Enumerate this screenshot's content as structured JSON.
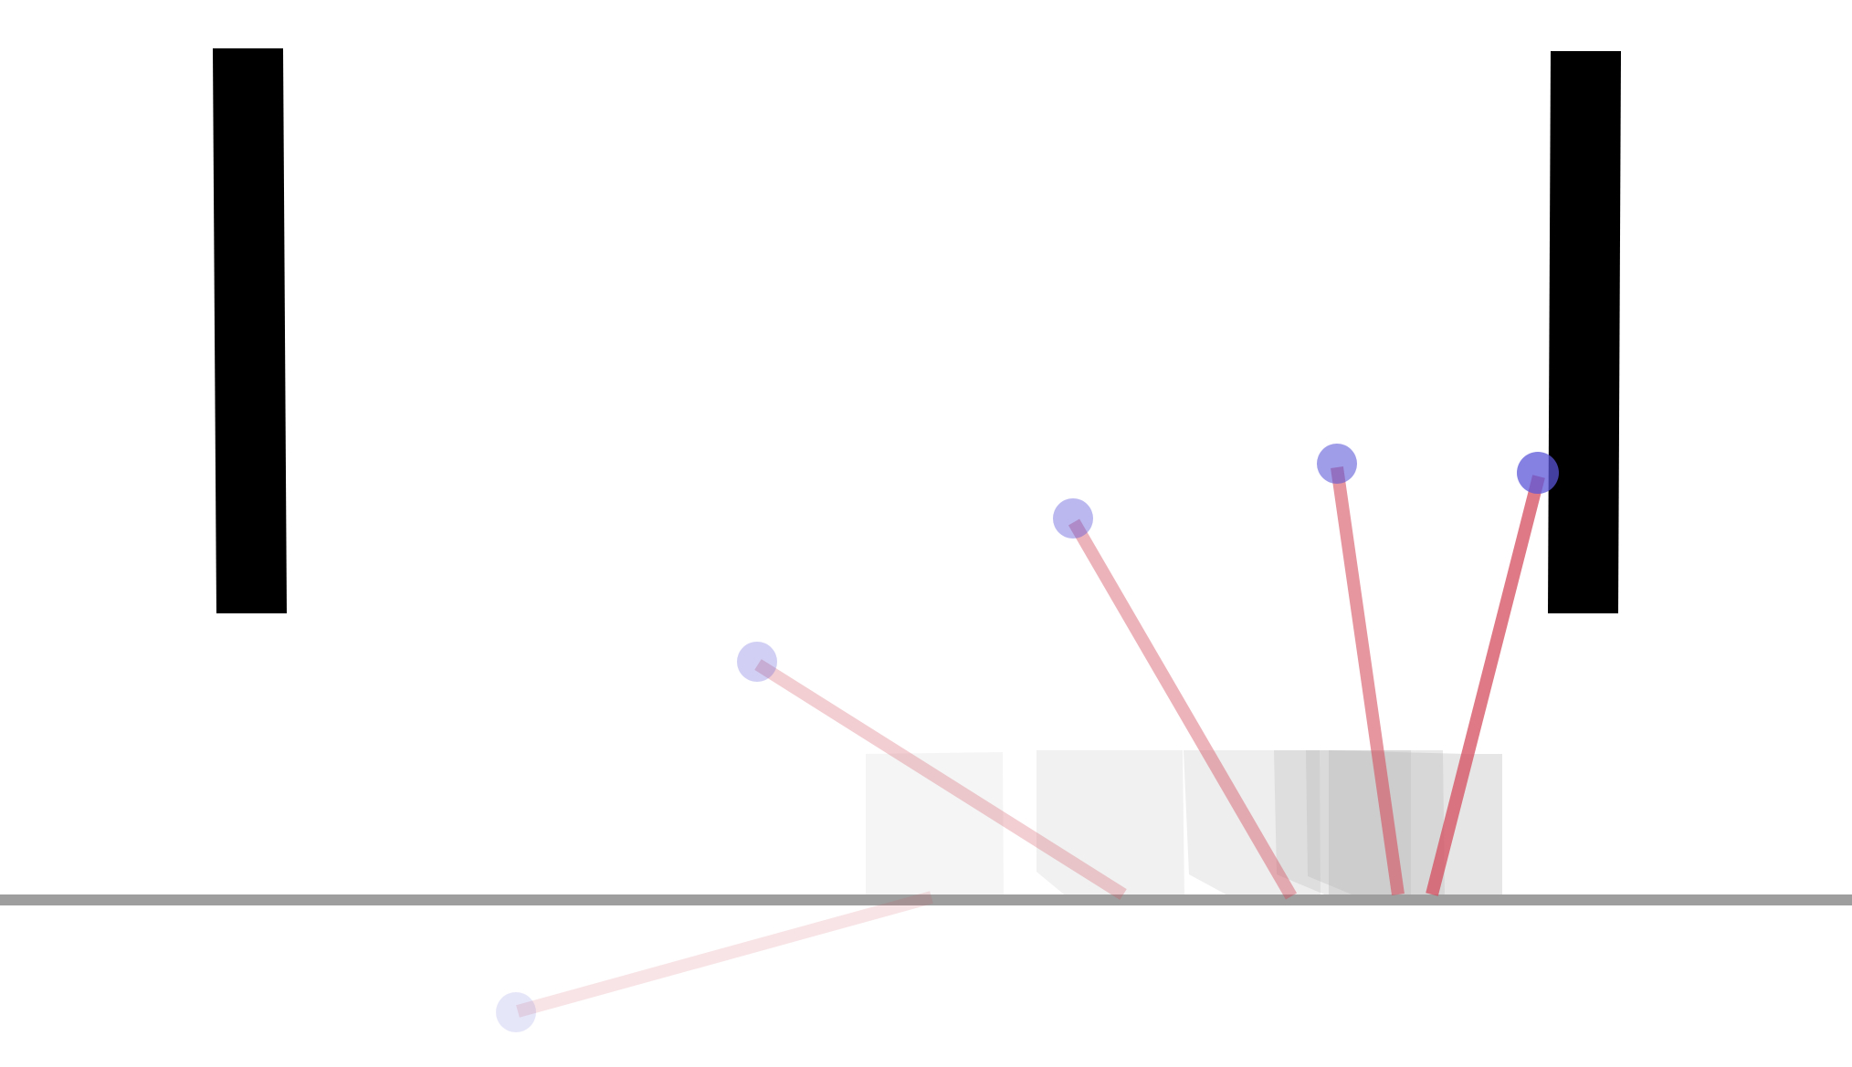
{
  "scene": {
    "background_color": "#ffffff",
    "ground_color": "#9e9e9e",
    "wall_color": "#000000",
    "cart_color": "#b0b0b0",
    "pole_color": "#d24a5a",
    "bob_color": "#5a55d8"
  },
  "walls": [
    {
      "name": "left-wall"
    },
    {
      "name": "right-wall"
    }
  ],
  "trajectory": {
    "description_frames": 6,
    "frames": [
      {
        "opacity": 0.15
      },
      {
        "opacity": 0.28
      },
      {
        "opacity": 0.42
      },
      {
        "opacity": 0.58
      },
      {
        "opacity": 0.74
      },
      {
        "opacity": 0.92
      }
    ]
  }
}
